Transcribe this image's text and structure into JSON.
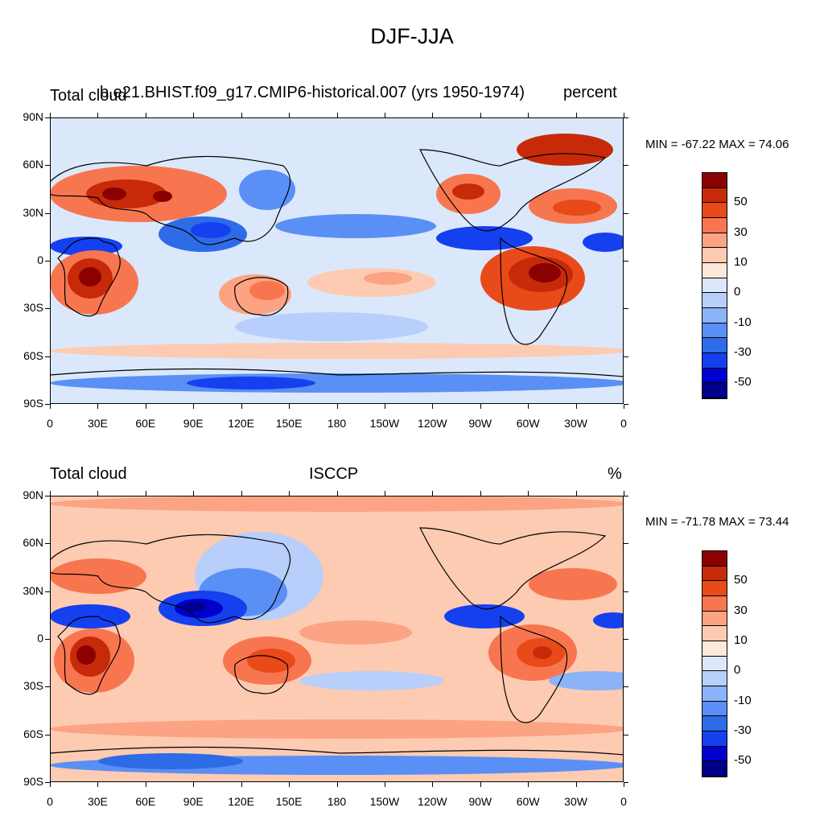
{
  "title": "DJF-JJA",
  "colors": [
    "#00008b",
    "#0000cd",
    "#1540f0",
    "#2e6be6",
    "#5a8ff5",
    "#8cb2f7",
    "#b7cffa",
    "#dbe8fb",
    "#fde8da",
    "#fdcbb2",
    "#fba382",
    "#f77650",
    "#e84a1a",
    "#c72a08",
    "#8b0000"
  ],
  "panels": [
    {
      "left_label": "Total cloud",
      "center_label": "b.e21.BHIST.f09_g17.CMIP6-historical.007 (yrs 1950-1974)",
      "right_label": "percent",
      "min_max": "MIN = -67.22 MAX =  74.06"
    },
    {
      "left_label": "Total cloud",
      "center_label": "ISCCP",
      "right_label": "%",
      "min_max": "MIN = -71.78 MAX =  73.44"
    }
  ],
  "lat_ticks": [
    "90N",
    "60N",
    "30N",
    "0",
    "30S",
    "60S",
    "90S"
  ],
  "lon_ticks": [
    "0",
    "30E",
    "60E",
    "90E",
    "120E",
    "150E",
    "180",
    "150W",
    "120W",
    "90W",
    "60W",
    "30W",
    "0"
  ],
  "colorbar_ticks": [
    "50",
    "30",
    "10",
    "0",
    "-10",
    "-30",
    "-50"
  ]
}
